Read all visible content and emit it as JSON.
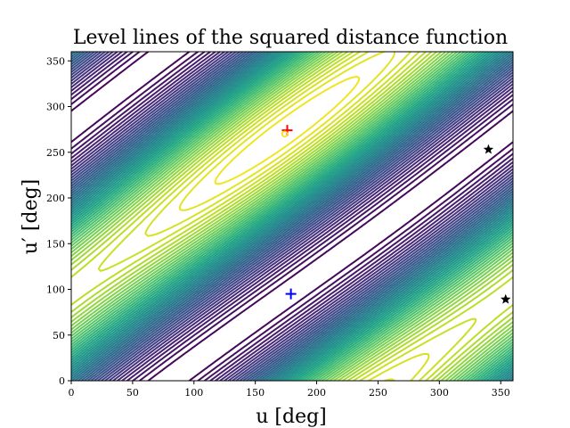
{
  "chart_data": {
    "type": "contour",
    "title": "Level lines of the squared distance function",
    "xlabel": "u [deg]",
    "ylabel": "u′ [deg]",
    "xlim": [
      0,
      360
    ],
    "ylim": [
      0,
      360
    ],
    "x_ticks": [
      "0",
      "50",
      "100",
      "150",
      "200",
      "250",
      "300",
      "350"
    ],
    "y_ticks": [
      "0",
      "50",
      "100",
      "150",
      "200",
      "250",
      "300",
      "350"
    ],
    "grid": false,
    "colormap": "viridis",
    "function_model": {
      "minimum": [
        176,
        274
      ],
      "saddle": [
        178,
        95
      ],
      "maximum_1": [
        340,
        253
      ],
      "maximum_2": [
        354,
        89
      ]
    },
    "markers": [
      {
        "symbol": "+",
        "color": "#ff0000",
        "u": 176,
        "u_prime": 274
      },
      {
        "symbol": "o",
        "color": "#ffd700",
        "u": 174,
        "u_prime": 270
      },
      {
        "symbol": "+",
        "color": "#0000ff",
        "u": 179,
        "u_prime": 95
      },
      {
        "symbol": "★",
        "color": "#000000",
        "u": 340,
        "u_prime": 253
      },
      {
        "symbol": "★",
        "color": "#000000",
        "u": 354,
        "u_prime": 89
      }
    ]
  }
}
